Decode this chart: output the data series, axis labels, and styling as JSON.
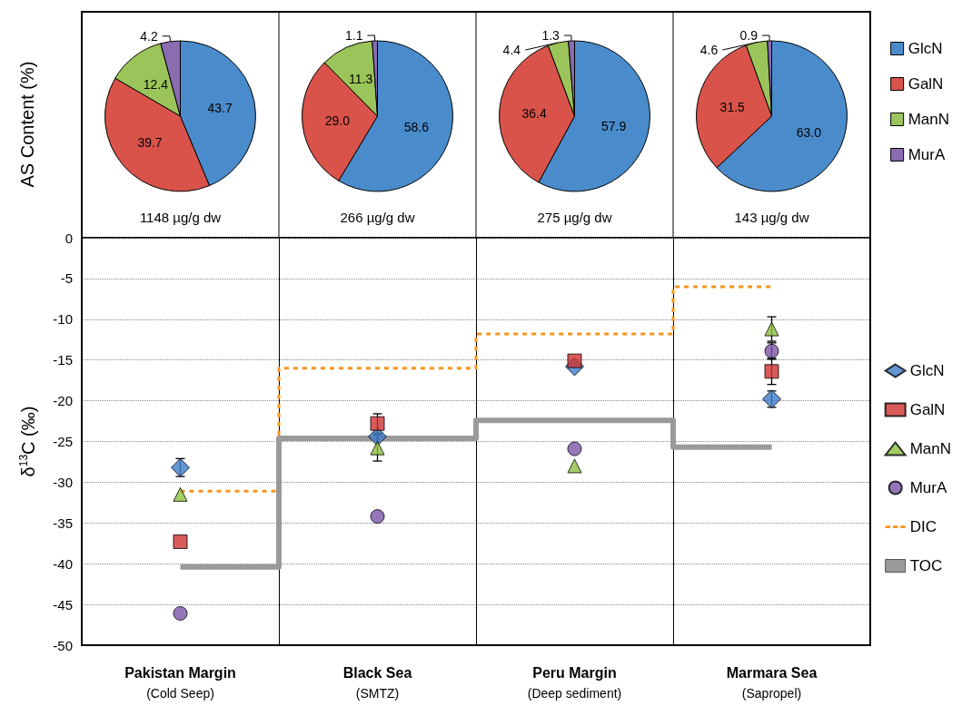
{
  "chart_data": [
    {
      "type": "pie",
      "ylabel": "AS Content (%)",
      "categories": [
        "GlcN",
        "GalN",
        "ManN",
        "MurA"
      ],
      "colors": [
        "#4a8ccb",
        "#d9534a",
        "#9bc45a",
        "#8a6cb0"
      ],
      "legend": "right",
      "annotations": [
        "1148 µg/g dw",
        "266 µg/g dw",
        "275 µg/g dw",
        "143 µg/g dw"
      ],
      "series": [
        {
          "values": [
            43.7,
            39.7,
            12.4,
            4.2
          ],
          "value_labels": [
            "43.7",
            "39.7",
            "12.4",
            "4.2"
          ]
        },
        {
          "values": [
            58.6,
            29.0,
            11.3,
            1.1
          ],
          "value_labels": [
            "58.6",
            "29.0",
            "11.3",
            "1.1"
          ]
        },
        {
          "values": [
            57.9,
            36.4,
            4.4,
            1.3
          ],
          "value_labels": [
            "57.9",
            "36.4",
            "4.4",
            "1.3"
          ]
        },
        {
          "values": [
            63.0,
            31.5,
            4.6,
            0.9
          ],
          "value_labels": [
            "63.0",
            "31.5",
            "4.6",
            "0.9"
          ]
        }
      ]
    },
    {
      "type": "scatter",
      "ylabel": "δ$^{13}$C (‰)",
      "categories": [
        "Pakistan Margin",
        "Black Sea",
        "Peru Margin",
        "Marmara Sea"
      ],
      "ylim": [
        -50,
        0
      ],
      "yticks": [
        -50,
        -45,
        -40,
        -35,
        -30,
        -25,
        -20,
        -15,
        -10,
        -5,
        0
      ],
      "grid": "y",
      "legend": "right",
      "annotations": [
        "(Cold Seep)",
        "(SMTZ)",
        "(Deep sediment)",
        "(Sapropel)"
      ],
      "series": [
        {
          "name": "GlcN",
          "color": "#3d7cc9",
          "marker": "diamond",
          "values": [
            -28.2,
            -24.4,
            -15.8,
            -19.8
          ],
          "errors": [
            1.1,
            null,
            null,
            1.0
          ]
        },
        {
          "name": "GalN",
          "color": "#d0322f",
          "marker": "square",
          "values": [
            -37.3,
            -22.8,
            -15.1,
            -16.4
          ],
          "errors": [
            null,
            1.2,
            null,
            1.6
          ]
        },
        {
          "name": "ManN",
          "color": "#8fbf3f",
          "marker": "triangle",
          "values": [
            -31.5,
            -25.8,
            -28.0,
            -11.2
          ],
          "errors": [
            null,
            1.6,
            null,
            1.5
          ]
        },
        {
          "name": "MurA",
          "color": "#7b55a8",
          "marker": "circle",
          "values": [
            -46.1,
            -34.2,
            -25.9,
            -13.9
          ],
          "errors": [
            null,
            null,
            null,
            1.0
          ]
        },
        {
          "name": "DIC",
          "type": "step",
          "color": "#f7941d",
          "line_style": "dashed",
          "marker": "none",
          "values": [
            -31.1,
            -16.0,
            -11.8,
            -6.0
          ]
        },
        {
          "name": "TOC",
          "type": "step",
          "color": "#9a9a9a",
          "line_style": "solid",
          "marker": "none",
          "values": [
            -40.4,
            -24.6,
            -22.4,
            -25.7
          ]
        }
      ]
    }
  ]
}
